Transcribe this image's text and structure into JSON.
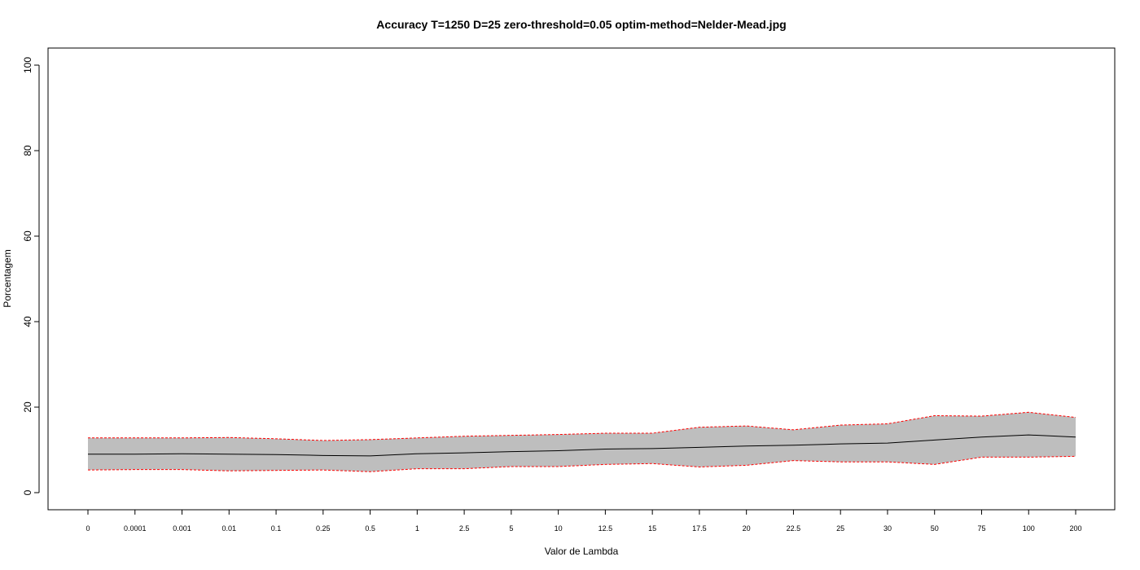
{
  "chart_data": {
    "type": "area",
    "title": "Accuracy T=1250 D=25 zero-threshold=0.05 optim-method=Nelder-Mead.jpg",
    "xlabel": "Valor de Lambda",
    "ylabel": "Porcentagem",
    "categories": [
      "0",
      "0.0001",
      "0.001",
      "0.01",
      "0.1",
      "0.25",
      "0.5",
      "1",
      "2.5",
      "5",
      "10",
      "12.5",
      "15",
      "17.5",
      "20",
      "22.5",
      "25",
      "30",
      "50",
      "75",
      "100",
      "200"
    ],
    "ylim": [
      0,
      100
    ],
    "yticks": [
      0,
      20,
      40,
      60,
      80,
      100
    ],
    "grid": false,
    "series": [
      {
        "role": "mean",
        "values": [
          9.0,
          9.0,
          9.1,
          9.0,
          8.9,
          8.7,
          8.6,
          9.1,
          9.3,
          9.6,
          9.8,
          10.2,
          10.3,
          10.6,
          10.9,
          11.1,
          11.4,
          11.6,
          12.3,
          13.0,
          13.5,
          13.0
        ]
      },
      {
        "role": "upper",
        "values": [
          12.8,
          12.8,
          12.8,
          12.9,
          12.6,
          12.2,
          12.4,
          12.8,
          13.2,
          13.4,
          13.6,
          13.9,
          13.9,
          15.3,
          15.6,
          14.7,
          15.8,
          16.1,
          18.0,
          17.9,
          18.8,
          17.6
        ]
      },
      {
        "role": "lower",
        "values": [
          5.3,
          5.4,
          5.4,
          5.1,
          5.2,
          5.3,
          4.9,
          5.6,
          5.6,
          6.1,
          6.1,
          6.6,
          6.8,
          6.0,
          6.4,
          7.5,
          7.2,
          7.2,
          6.6,
          8.3,
          8.3,
          8.5
        ]
      }
    ],
    "colors": {
      "band_fill": "#bebebe",
      "bound_line": "#ff0000",
      "mean_line": "#000000",
      "frame": "#000000"
    }
  }
}
